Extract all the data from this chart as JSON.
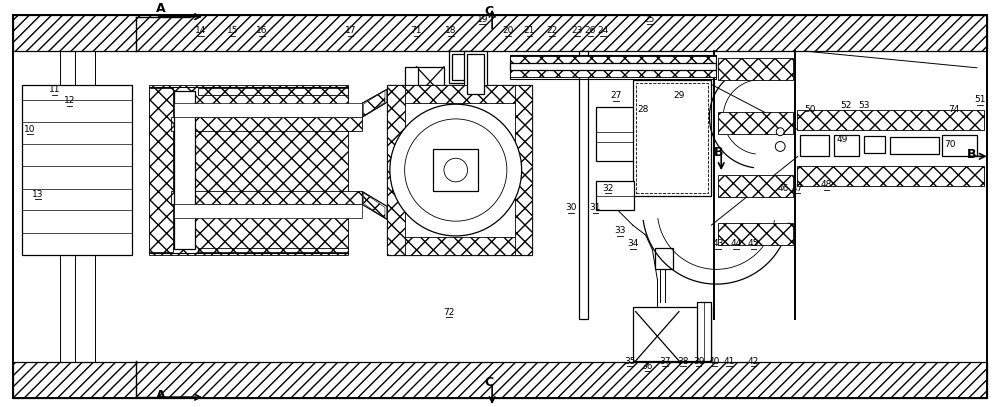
{
  "bg_color": "#ffffff",
  "lc": "#000000",
  "fig_w": 10.0,
  "fig_h": 4.07,
  "dpi": 100,
  "labels": [
    [
      "10",
      22,
      278
    ],
    [
      "11",
      47,
      318
    ],
    [
      "12",
      62,
      307
    ],
    [
      "13",
      30,
      212
    ],
    [
      "14",
      196,
      378
    ],
    [
      "15",
      228,
      378
    ],
    [
      "16",
      258,
      378
    ],
    [
      "17",
      348,
      378
    ],
    [
      "71",
      415,
      378
    ],
    [
      "18",
      450,
      378
    ],
    [
      "19",
      482,
      390
    ],
    [
      "20",
      508,
      378
    ],
    [
      "21",
      530,
      378
    ],
    [
      "22",
      553,
      378
    ],
    [
      "23",
      578,
      378
    ],
    [
      "24",
      605,
      378
    ],
    [
      "25",
      652,
      390
    ],
    [
      "26",
      592,
      378
    ],
    [
      "27",
      618,
      312
    ],
    [
      "28",
      645,
      298
    ],
    [
      "29",
      682,
      312
    ],
    [
      "30",
      572,
      198
    ],
    [
      "31",
      597,
      198
    ],
    [
      "32",
      610,
      218
    ],
    [
      "33",
      622,
      175
    ],
    [
      "34",
      635,
      162
    ],
    [
      "35",
      632,
      42
    ],
    [
      "36",
      650,
      37
    ],
    [
      "37",
      668,
      42
    ],
    [
      "38",
      686,
      42
    ],
    [
      "39",
      702,
      42
    ],
    [
      "40",
      718,
      42
    ],
    [
      "41",
      733,
      42
    ],
    [
      "42",
      758,
      42
    ],
    [
      "43",
      722,
      162
    ],
    [
      "44",
      740,
      162
    ],
    [
      "45",
      758,
      162
    ],
    [
      "46",
      788,
      218
    ],
    [
      "47",
      802,
      218
    ],
    [
      "48",
      832,
      222
    ],
    [
      "49",
      848,
      268
    ],
    [
      "50",
      815,
      298
    ],
    [
      "51",
      988,
      308
    ],
    [
      "52",
      852,
      302
    ],
    [
      "53",
      870,
      302
    ],
    [
      "70",
      958,
      262
    ],
    [
      "72",
      448,
      92
    ],
    [
      "74",
      962,
      298
    ]
  ]
}
